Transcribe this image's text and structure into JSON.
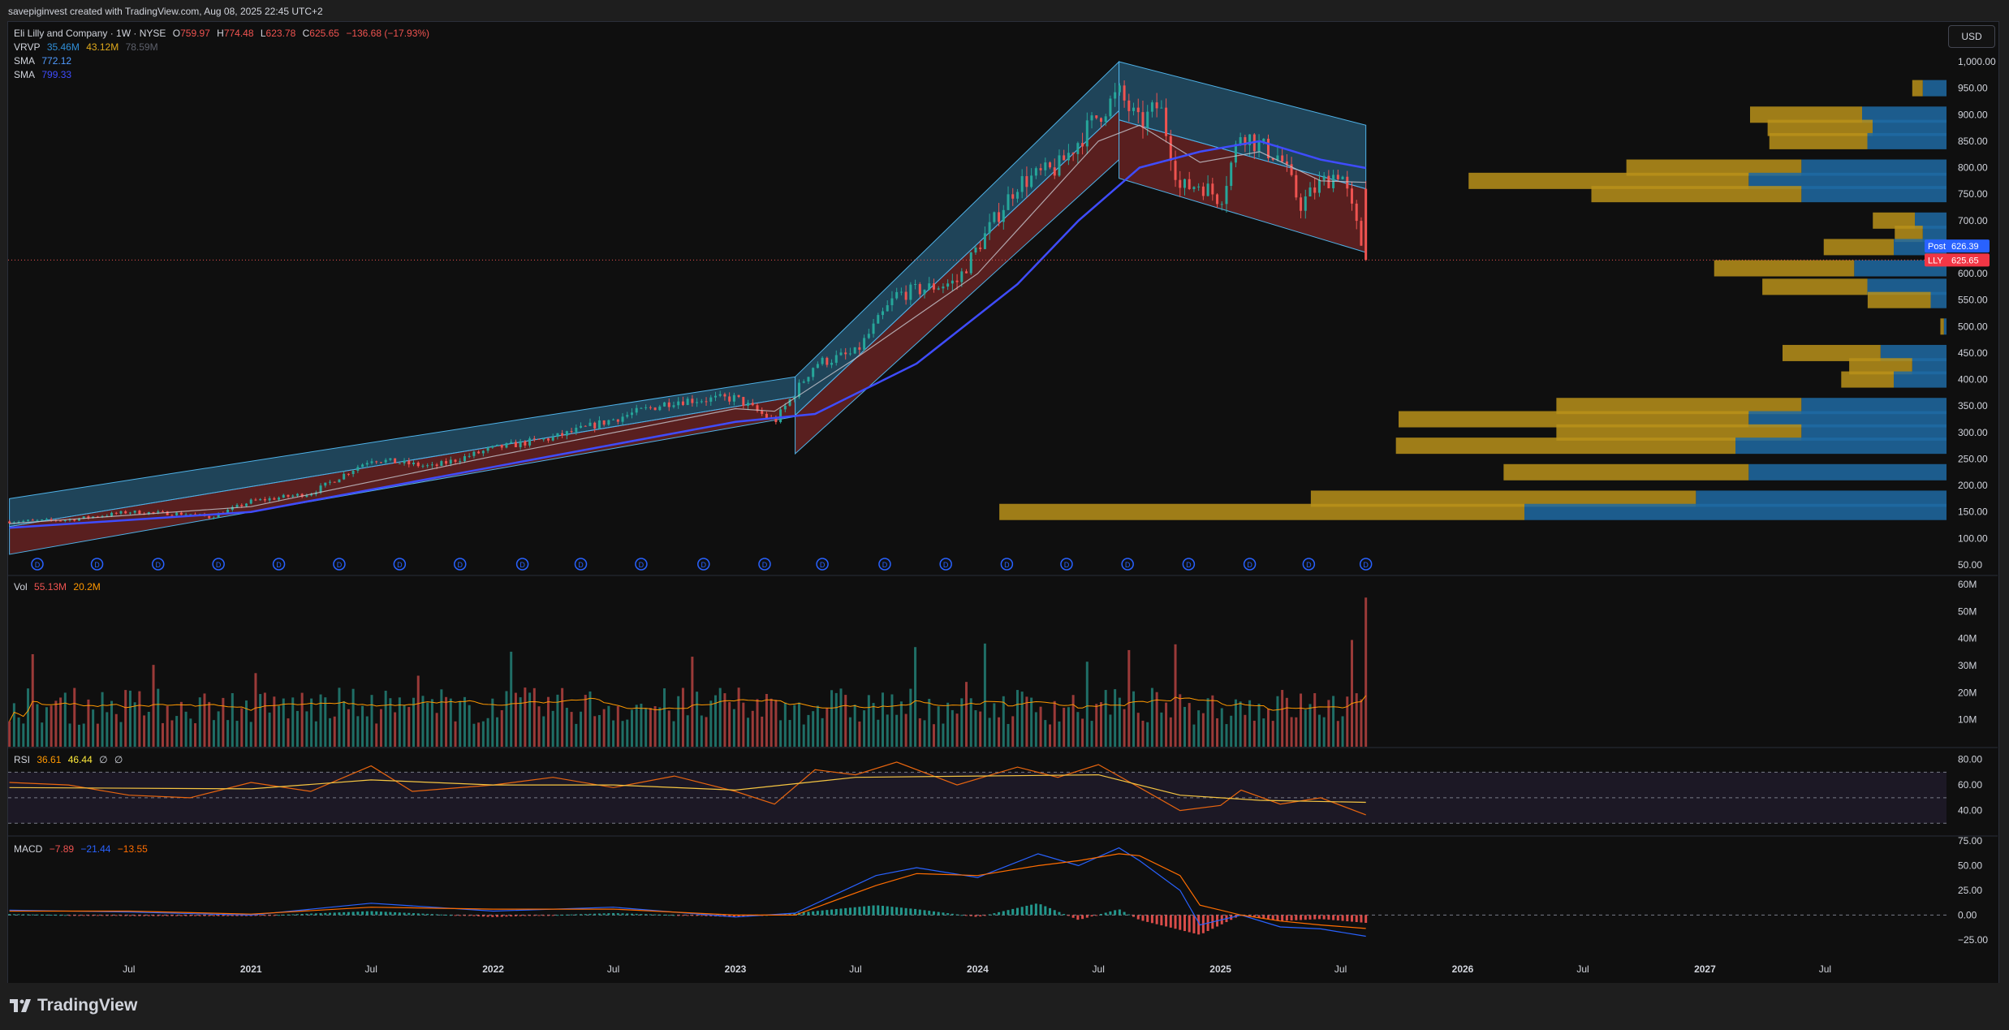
{
  "header": {
    "caption": "savepiginvest created with TradingView.com, Aug 08, 2025 22:45 UTC+2"
  },
  "currency_button": "USD",
  "legend": {
    "symbol": "Eli Lilly and Company · 1W · NYSE",
    "o_label": "O",
    "o": "759.97",
    "h_label": "H",
    "h": "774.48",
    "l_label": "L",
    "l": "623.78",
    "c_label": "C",
    "c": "625.65",
    "change": "−136.68 (−17.93%)",
    "vrvp_label": "VRVP",
    "vrvp_up": "35.46M",
    "vrvp_down": "43.12M",
    "vrvp_total": "78.59M",
    "sma1_label": "SMA",
    "sma1": "772.12",
    "sma2_label": "SMA",
    "sma2": "799.33",
    "vol_label": "Vol",
    "vol": "55.13M",
    "vol_ma": "20.2M",
    "rsi_label": "RSI",
    "rsi": "36.61",
    "rsi_ma": "46.44",
    "rsi_extra1": "∅",
    "rsi_extra2": "∅",
    "macd_label": "MACD",
    "macd_hist": "−7.89",
    "macd_line": "−21.44",
    "macd_signal": "−13.55"
  },
  "colors": {
    "up": "#26a69a",
    "down": "#ef5350",
    "sma_fast": "#ffffff",
    "sma_slow": "#2962ff",
    "vp_up": "#1f6aa3",
    "vp_down": "#b8901a",
    "rsi": "#ff9800",
    "macd": "#2962ff",
    "signal": "#ff6d00"
  },
  "price_tags": {
    "post_label": "Post",
    "post": "626.39",
    "last_label": "LLY",
    "last": "625.65"
  },
  "footer": {
    "brand": "TradingView",
    "logo_icon": "tradingview-logo-icon"
  },
  "chart_data": [
    {
      "type": "candlestick",
      "title": "Eli Lilly and Company · 1W · NYSE",
      "price_axis": {
        "ticks": [
          "1,000.00",
          "950.00",
          "900.00",
          "850.00",
          "800.00",
          "750.00",
          "700.00",
          "650.00",
          "600.00",
          "550.00",
          "500.00",
          "450.00",
          "400.00",
          "350.00",
          "300.00",
          "250.00",
          "200.00",
          "150.00",
          "100.00",
          "50.00"
        ],
        "ylim": [
          50,
          1000
        ]
      },
      "time_axis": {
        "ticks": [
          "Jul",
          "2021",
          "Jul",
          "2022",
          "Jul",
          "2023",
          "Jul",
          "2024",
          "Jul",
          "2025",
          "Jul",
          "2026",
          "Jul",
          "2027",
          "Jul"
        ],
        "xlim": [
          "2020-01-01",
          "2027-12-31"
        ]
      },
      "price_path": [
        [
          "2020-01-03",
          132
        ],
        [
          "2020-04-01",
          135
        ],
        [
          "2020-07-01",
          150
        ],
        [
          "2020-10-01",
          146
        ],
        [
          "2020-11-01",
          140
        ],
        [
          "2021-01-01",
          170
        ],
        [
          "2021-04-01",
          185
        ],
        [
          "2021-07-01",
          250
        ],
        [
          "2021-10-01",
          235
        ],
        [
          "2022-01-01",
          270
        ],
        [
          "2022-04-01",
          290
        ],
        [
          "2022-07-01",
          325
        ],
        [
          "2022-10-01",
          360
        ],
        [
          "2023-01-01",
          365
        ],
        [
          "2023-03-01",
          320
        ],
        [
          "2023-05-01",
          430
        ],
        [
          "2023-07-01",
          450
        ],
        [
          "2023-09-01",
          560
        ],
        [
          "2023-12-01",
          585
        ],
        [
          "2024-01-01",
          650
        ],
        [
          "2024-03-01",
          770
        ],
        [
          "2024-05-01",
          800
        ],
        [
          "2024-07-01",
          900
        ],
        [
          "2024-08-01",
          940
        ],
        [
          "2024-09-01",
          880
        ],
        [
          "2024-10-01",
          920
        ],
        [
          "2024-11-01",
          760
        ],
        [
          "2024-12-01",
          770
        ],
        [
          "2025-01-01",
          740
        ],
        [
          "2025-02-01",
          870
        ],
        [
          "2025-03-01",
          840
        ],
        [
          "2025-04-01",
          820
        ],
        [
          "2025-05-01",
          730
        ],
        [
          "2025-06-01",
          770
        ],
        [
          "2025-07-01",
          795
        ],
        [
          "2025-08-08",
          625.65
        ]
      ],
      "sma_fast": [
        [
          "2020-01-03",
          128
        ],
        [
          "2021-01-01",
          160
        ],
        [
          "2022-01-01",
          255
        ],
        [
          "2023-01-01",
          345
        ],
        [
          "2023-03-01",
          340
        ],
        [
          "2023-07-01",
          440
        ],
        [
          "2024-01-01",
          600
        ],
        [
          "2024-07-01",
          850
        ],
        [
          "2024-09-01",
          880
        ],
        [
          "2024-12-01",
          810
        ],
        [
          "2025-03-01",
          830
        ],
        [
          "2025-06-01",
          775
        ],
        [
          "2025-08-08",
          772.12
        ]
      ],
      "sma_slow": [
        [
          "2020-01-03",
          120
        ],
        [
          "2021-01-01",
          150
        ],
        [
          "2022-01-01",
          235
        ],
        [
          "2023-01-01",
          320
        ],
        [
          "2023-05-01",
          335
        ],
        [
          "2023-10-01",
          430
        ],
        [
          "2024-03-01",
          580
        ],
        [
          "2024-06-01",
          700
        ],
        [
          "2024-09-01",
          800
        ],
        [
          "2024-12-01",
          830
        ],
        [
          "2025-03-01",
          850
        ],
        [
          "2025-06-01",
          815
        ],
        [
          "2025-08-08",
          799.33
        ]
      ],
      "dividend_markers": [
        "2020-02-14",
        "2020-05-14",
        "2020-08-14",
        "2020-11-13",
        "2021-02-12",
        "2021-05-14",
        "2021-08-13",
        "2021-11-12",
        "2022-02-14",
        "2022-05-13",
        "2022-08-12",
        "2022-11-14",
        "2023-02-14",
        "2023-05-12",
        "2023-08-14",
        "2023-11-14",
        "2024-02-14",
        "2024-05-14",
        "2024-08-14",
        "2024-11-14",
        "2025-02-14",
        "2025-05-14",
        "2025-08-08"
      ],
      "volume_profile": [
        {
          "price": 950,
          "up": 0.3,
          "down": 0.9
        },
        {
          "price": 900,
          "up": 3.2,
          "down": 3.2
        },
        {
          "price": 875,
          "up": 3.0,
          "down": 2.8
        },
        {
          "price": 850,
          "up": 2.8,
          "down": 3.0
        },
        {
          "price": 800,
          "up": 5.0,
          "down": 5.5
        },
        {
          "price": 775,
          "up": 8.0,
          "down": 7.5
        },
        {
          "price": 750,
          "up": 6.0,
          "down": 5.5
        },
        {
          "price": 700,
          "up": 1.2,
          "down": 1.2
        },
        {
          "price": 675,
          "up": 0.8,
          "down": 0.9
        },
        {
          "price": 650,
          "up": 2.0,
          "down": 2.0
        },
        {
          "price": 610,
          "up": 4.0,
          "down": 3.5
        },
        {
          "price": 575,
          "up": 3.0,
          "down": 3.0
        },
        {
          "price": 550,
          "up": 1.8,
          "down": 0.6
        },
        {
          "price": 500,
          "up": 0.1,
          "down": 0.1
        },
        {
          "price": 450,
          "up": 2.8,
          "down": 2.5
        },
        {
          "price": 425,
          "up": 1.8,
          "down": 1.3
        },
        {
          "price": 400,
          "up": 1.5,
          "down": 2.0
        },
        {
          "price": 350,
          "up": 7.0,
          "down": 5.5
        },
        {
          "price": 325,
          "up": 10.0,
          "down": 7.5
        },
        {
          "price": 300,
          "up": 7.0,
          "down": 5.5
        },
        {
          "price": 275,
          "up": 9.7,
          "down": 8.0
        },
        {
          "price": 225,
          "up": 7.0,
          "down": 7.5
        },
        {
          "price": 175,
          "up": 11.0,
          "down": 9.5
        },
        {
          "price": 150,
          "up": 15.0,
          "down": 16.0
        }
      ],
      "price_channels": [
        {
          "start": [
            "2020-01-03",
            175
          ],
          "end": [
            "2023-04-01",
            405
          ],
          "lower_start": [
            "2020-01-03",
            70
          ],
          "lower_end": [
            "2023-04-01",
            330
          ]
        },
        {
          "start": [
            "2023-04-01",
            405
          ],
          "end": [
            "2024-08-01",
            1000
          ],
          "lower_start": [
            "2023-04-01",
            260
          ],
          "lower_end": [
            "2024-08-01",
            815
          ]
        },
        {
          "start": [
            "2024-08-01",
            1000
          ],
          "end": [
            "2025-08-08",
            880
          ],
          "lower_start": [
            "2024-08-01",
            780
          ],
          "lower_end": [
            "2025-08-08",
            640
          ]
        }
      ]
    },
    {
      "type": "bar",
      "title": "Vol",
      "ylabel": "Volume",
      "ylim": [
        0,
        60
      ],
      "ticks": [
        "60M",
        "50M",
        "40M",
        "30M",
        "20M",
        "10M"
      ],
      "ma_value": "20.2M",
      "last_value_millions": 55.13
    },
    {
      "type": "line",
      "title": "RSI",
      "ylim": [
        20,
        90
      ],
      "ticks": [
        "80.00",
        "60.00",
        "40.00"
      ],
      "bands": [
        70,
        50,
        30
      ],
      "rsi": [
        [
          "2020-01-03",
          62
        ],
        [
          "2020-04-01",
          60
        ],
        [
          "2020-07-01",
          52
        ],
        [
          "2020-10-01",
          50
        ],
        [
          "2021-01-01",
          62
        ],
        [
          "2021-04-01",
          55
        ],
        [
          "2021-07-01",
          75
        ],
        [
          "2021-09-01",
          55
        ],
        [
          "2022-01-01",
          60
        ],
        [
          "2022-04-01",
          66
        ],
        [
          "2022-07-01",
          58
        ],
        [
          "2022-10-01",
          67
        ],
        [
          "2023-01-01",
          55
        ],
        [
          "2023-03-01",
          45
        ],
        [
          "2023-05-01",
          72
        ],
        [
          "2023-07-01",
          68
        ],
        [
          "2023-09-01",
          78
        ],
        [
          "2023-12-01",
          60
        ],
        [
          "2024-03-01",
          74
        ],
        [
          "2024-05-01",
          66
        ],
        [
          "2024-07-01",
          76
        ],
        [
          "2024-09-01",
          58
        ],
        [
          "2024-11-01",
          40
        ],
        [
          "2025-01-01",
          44
        ],
        [
          "2025-02-01",
          56
        ],
        [
          "2025-04-01",
          45
        ],
        [
          "2025-06-01",
          50
        ],
        [
          "2025-08-08",
          36.61
        ]
      ],
      "rsi_ma": [
        [
          "2020-01-03",
          58
        ],
        [
          "2021-01-01",
          57
        ],
        [
          "2021-07-01",
          64
        ],
        [
          "2022-01-01",
          60
        ],
        [
          "2022-07-01",
          60
        ],
        [
          "2023-01-01",
          56
        ],
        [
          "2023-07-01",
          66
        ],
        [
          "2024-01-01",
          67
        ],
        [
          "2024-07-01",
          68
        ],
        [
          "2024-11-01",
          52
        ],
        [
          "2025-03-01",
          48
        ],
        [
          "2025-08-08",
          46.44
        ]
      ]
    },
    {
      "type": "line",
      "title": "MACD",
      "ylim": [
        -35,
        80
      ],
      "ticks": [
        "75.00",
        "50.00",
        "25.00",
        "0.00",
        "−25.00"
      ],
      "macd": [
        [
          "2020-01-03",
          5
        ],
        [
          "2020-07-01",
          3
        ],
        [
          "2021-01-01",
          0
        ],
        [
          "2021-07-01",
          12
        ],
        [
          "2022-01-01",
          4
        ],
        [
          "2022-07-01",
          8
        ],
        [
          "2023-01-01",
          -2
        ],
        [
          "2023-04-01",
          2
        ],
        [
          "2023-08-01",
          40
        ],
        [
          "2023-10-01",
          48
        ],
        [
          "2024-01-01",
          38
        ],
        [
          "2024-04-01",
          62
        ],
        [
          "2024-06-01",
          50
        ],
        [
          "2024-08-01",
          68
        ],
        [
          "2024-09-01",
          55
        ],
        [
          "2024-11-01",
          25
        ],
        [
          "2024-12-01",
          -10
        ],
        [
          "2025-02-01",
          0
        ],
        [
          "2025-04-01",
          -12
        ],
        [
          "2025-06-01",
          -14
        ],
        [
          "2025-08-08",
          -21.44
        ]
      ],
      "signal": [
        [
          "2020-01-03",
          4
        ],
        [
          "2020-07-01",
          4
        ],
        [
          "2021-01-01",
          1
        ],
        [
          "2021-07-01",
          8
        ],
        [
          "2022-01-01",
          6
        ],
        [
          "2022-07-01",
          6
        ],
        [
          "2023-01-01",
          0
        ],
        [
          "2023-04-01",
          0
        ],
        [
          "2023-08-01",
          30
        ],
        [
          "2023-10-01",
          42
        ],
        [
          "2024-01-01",
          40
        ],
        [
          "2024-04-01",
          50
        ],
        [
          "2024-06-01",
          55
        ],
        [
          "2024-08-01",
          62
        ],
        [
          "2024-09-01",
          60
        ],
        [
          "2024-11-01",
          40
        ],
        [
          "2024-12-01",
          10
        ],
        [
          "2025-02-01",
          0
        ],
        [
          "2025-04-01",
          -6
        ],
        [
          "2025-06-01",
          -10
        ],
        [
          "2025-08-08",
          -13.55
        ]
      ],
      "histogram_last": -7.89
    }
  ]
}
